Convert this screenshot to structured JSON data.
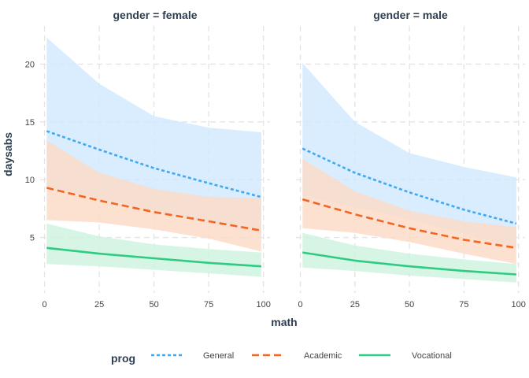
{
  "chart_data": {
    "type": "line",
    "facet_variable": "gender",
    "facets": [
      {
        "strip_label": "gender = female",
        "series": [
          {
            "name": "General",
            "x": [
              1,
              25,
              50,
              75,
              99
            ],
            "y": [
              14.2,
              12.6,
              11.0,
              9.7,
              8.5
            ],
            "lower": [
              9.4,
              8.4,
              7.3,
              6.2,
              5.3
            ],
            "upper": [
              22.3,
              18.3,
              15.5,
              14.5,
              14.1
            ]
          },
          {
            "name": "Academic",
            "x": [
              1,
              25,
              50,
              75,
              99
            ],
            "y": [
              9.3,
              8.2,
              7.2,
              6.4,
              5.6
            ],
            "lower": [
              6.5,
              6.3,
              5.7,
              4.9,
              3.8
            ],
            "upper": [
              13.4,
              10.6,
              9.2,
              8.5,
              8.4
            ]
          },
          {
            "name": "Vocational",
            "x": [
              1,
              25,
              50,
              75,
              99
            ],
            "y": [
              4.1,
              3.6,
              3.2,
              2.8,
              2.5
            ],
            "lower": [
              2.7,
              2.5,
              2.2,
              1.9,
              1.6
            ],
            "upper": [
              6.2,
              5.1,
              4.4,
              4.0,
              3.7
            ]
          }
        ]
      },
      {
        "strip_label": "gender = male",
        "series": [
          {
            "name": "General",
            "x": [
              1,
              25,
              50,
              75,
              99
            ],
            "y": [
              12.7,
              10.6,
              8.9,
              7.4,
              6.2
            ],
            "lower": [
              8.6,
              7.6,
              6.6,
              5.3,
              4.1
            ],
            "upper": [
              20.1,
              15.0,
              12.3,
              11.1,
              10.2
            ]
          },
          {
            "name": "Academic",
            "x": [
              1,
              25,
              50,
              75,
              99
            ],
            "y": [
              8.3,
              7.0,
              5.8,
              4.8,
              4.1
            ],
            "lower": [
              5.8,
              5.4,
              4.6,
              3.6,
              2.7
            ],
            "upper": [
              11.8,
              9.0,
              7.3,
              6.4,
              5.9
            ]
          },
          {
            "name": "Vocational",
            "x": [
              1,
              25,
              50,
              75,
              99
            ],
            "y": [
              3.7,
              3.0,
              2.5,
              2.1,
              1.8
            ],
            "lower": [
              2.4,
              2.1,
              1.7,
              1.4,
              1.1
            ],
            "upper": [
              5.4,
              4.3,
              3.6,
              3.1,
              2.7
            ]
          }
        ]
      }
    ],
    "xlabel": "math",
    "ylabel": "daysabs",
    "xlim": [
      -2,
      103
    ],
    "ylim": [
      0.2,
      23.3
    ],
    "x_ticks": [
      0,
      25,
      50,
      75,
      100
    ],
    "y_ticks": [
      5,
      10,
      15,
      20
    ],
    "grid": true,
    "legend": {
      "title": "prog",
      "position": "bottom",
      "entries": [
        "General",
        "Academic",
        "Vocational"
      ]
    },
    "series_styles": {
      "General": {
        "color": "#3fa9f5",
        "dash": "short-dash",
        "ribbon": "#cfe9ff"
      },
      "Academic": {
        "color": "#f26522",
        "dash": "long-dash",
        "ribbon": "#fdd9c4"
      },
      "Vocational": {
        "color": "#2ecc82",
        "dash": "solid",
        "ribbon": "#cdf3df"
      }
    }
  }
}
